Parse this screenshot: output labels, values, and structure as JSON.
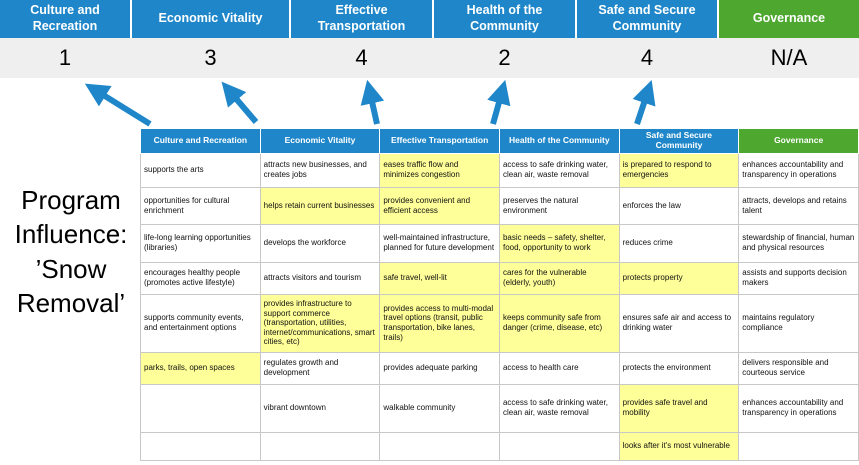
{
  "colors": {
    "header_blue": "#1F87C9",
    "header_green": "#4EA72E",
    "highlight_yellow": "#FFFF99",
    "score_band_gray": "#EFEFEF",
    "cell_border_gray": "#C8C8C8",
    "arrow_blue": "#1F87C9"
  },
  "title": {
    "text": "Program Influence: ’Snow Removal’",
    "lines": [
      "Program",
      "Influence:",
      "’Snow",
      "Removal’"
    ]
  },
  "scoreboard": {
    "columns": [
      {
        "label": "Culture and Recreation",
        "score": "1",
        "color": "blue"
      },
      {
        "label": "Economic Vitality",
        "score": "3",
        "color": "blue"
      },
      {
        "label": "Effective Transportation",
        "score": "4",
        "color": "blue"
      },
      {
        "label": "Health of the Community",
        "score": "2",
        "color": "blue"
      },
      {
        "label": "Safe and Secure Community",
        "score": "4",
        "color": "blue"
      },
      {
        "label": "Governance",
        "score": "N/A",
        "color": "green"
      }
    ]
  },
  "arrows": {
    "count": 5,
    "icon": "up-arrow-icon",
    "meaning": "points from table columns up to pillar scores"
  },
  "table": {
    "headers": [
      {
        "label": "Culture and Recreation",
        "color": "blue"
      },
      {
        "label": "Economic Vitality",
        "color": "blue"
      },
      {
        "label": "Effective Transportation",
        "color": "blue"
      },
      {
        "label": "Health of the Community",
        "color": "blue"
      },
      {
        "label": "Safe and Secure Community",
        "color": "blue"
      },
      {
        "label": "Governance",
        "color": "green"
      }
    ],
    "rows": [
      {
        "cells": [
          {
            "text": "supports the arts",
            "highlight": false
          },
          {
            "text": "attracts new businesses, and creates jobs",
            "highlight": false
          },
          {
            "text": "eases traffic flow and minimizes congestion",
            "highlight": true
          },
          {
            "text": "access to safe drinking water, clean air, waste removal",
            "highlight": false
          },
          {
            "text": "is prepared to respond to emergencies",
            "highlight": true
          },
          {
            "text": "enhances accountability and transparency in operations",
            "highlight": false
          }
        ]
      },
      {
        "cells": [
          {
            "text": "opportunities for cultural enrichment",
            "highlight": false
          },
          {
            "text": "helps retain current businesses",
            "highlight": true
          },
          {
            "text": "provides convenient and efficient access",
            "highlight": true
          },
          {
            "text": "preserves the natural environment",
            "highlight": false
          },
          {
            "text": "enforces the law",
            "highlight": false
          },
          {
            "text": "attracts, develops and retains talent",
            "highlight": false
          }
        ]
      },
      {
        "cells": [
          {
            "text": "life-long learning opportunities (libraries)",
            "highlight": false
          },
          {
            "text": "develops the workforce",
            "highlight": false
          },
          {
            "text": "well-maintained infrastructure, planned for future development",
            "highlight": false
          },
          {
            "text": "basic needs – safety, shelter, food, opportunity to work",
            "highlight": true
          },
          {
            "text": "reduces crime",
            "highlight": false
          },
          {
            "text": "stewardship of financial, human and physical resources",
            "highlight": false
          }
        ]
      },
      {
        "cells": [
          {
            "text": "encourages healthy people (promotes active lifestyle)",
            "highlight": false
          },
          {
            "text": "attracts visitors and tourism",
            "highlight": false
          },
          {
            "text": "safe travel, well-lit",
            "highlight": true
          },
          {
            "text": "cares for the vulnerable (elderly, youth)",
            "highlight": true
          },
          {
            "text": "protects property",
            "highlight": true
          },
          {
            "text": "assists and supports decision makers",
            "highlight": false
          }
        ]
      },
      {
        "cells": [
          {
            "text": "supports community events, and entertainment options",
            "highlight": false
          },
          {
            "text": "provides infrastructure to support commerce (transportation, utilities, internet/communications, smart cities, etc)",
            "highlight": true
          },
          {
            "text": "provides access to multi-modal travel options (transit, public transportation, bike lanes, trails)",
            "highlight": true
          },
          {
            "text": "keeps community safe from danger (crime, disease, etc)",
            "highlight": true
          },
          {
            "text": "ensures safe air and access to drinking water",
            "highlight": false
          },
          {
            "text": "maintains regulatory compliance",
            "highlight": false
          }
        ]
      },
      {
        "cells": [
          {
            "text": "parks, trails, open spaces",
            "highlight": true
          },
          {
            "text": "regulates growth and development",
            "highlight": false
          },
          {
            "text": "provides adequate parking",
            "highlight": false
          },
          {
            "text": "access to health care",
            "highlight": false
          },
          {
            "text": "protects the environment",
            "highlight": false
          },
          {
            "text": "delivers responsible and courteous service",
            "highlight": false
          }
        ]
      },
      {
        "cells": [
          {
            "text": "",
            "highlight": false
          },
          {
            "text": "vibrant downtown",
            "highlight": false
          },
          {
            "text": "walkable community",
            "highlight": false
          },
          {
            "text": "access to safe drinking water, clean air, waste removal",
            "highlight": false
          },
          {
            "text": "provides safe travel and mobility",
            "highlight": true
          },
          {
            "text": "enhances accountability and transparency in operations",
            "highlight": false
          }
        ]
      },
      {
        "cells": [
          {
            "text": "",
            "highlight": false
          },
          {
            "text": "",
            "highlight": false
          },
          {
            "text": "",
            "highlight": false
          },
          {
            "text": "",
            "highlight": false
          },
          {
            "text": "looks after it's most vulnerable",
            "highlight": true
          },
          {
            "text": "",
            "highlight": false
          }
        ]
      }
    ]
  }
}
